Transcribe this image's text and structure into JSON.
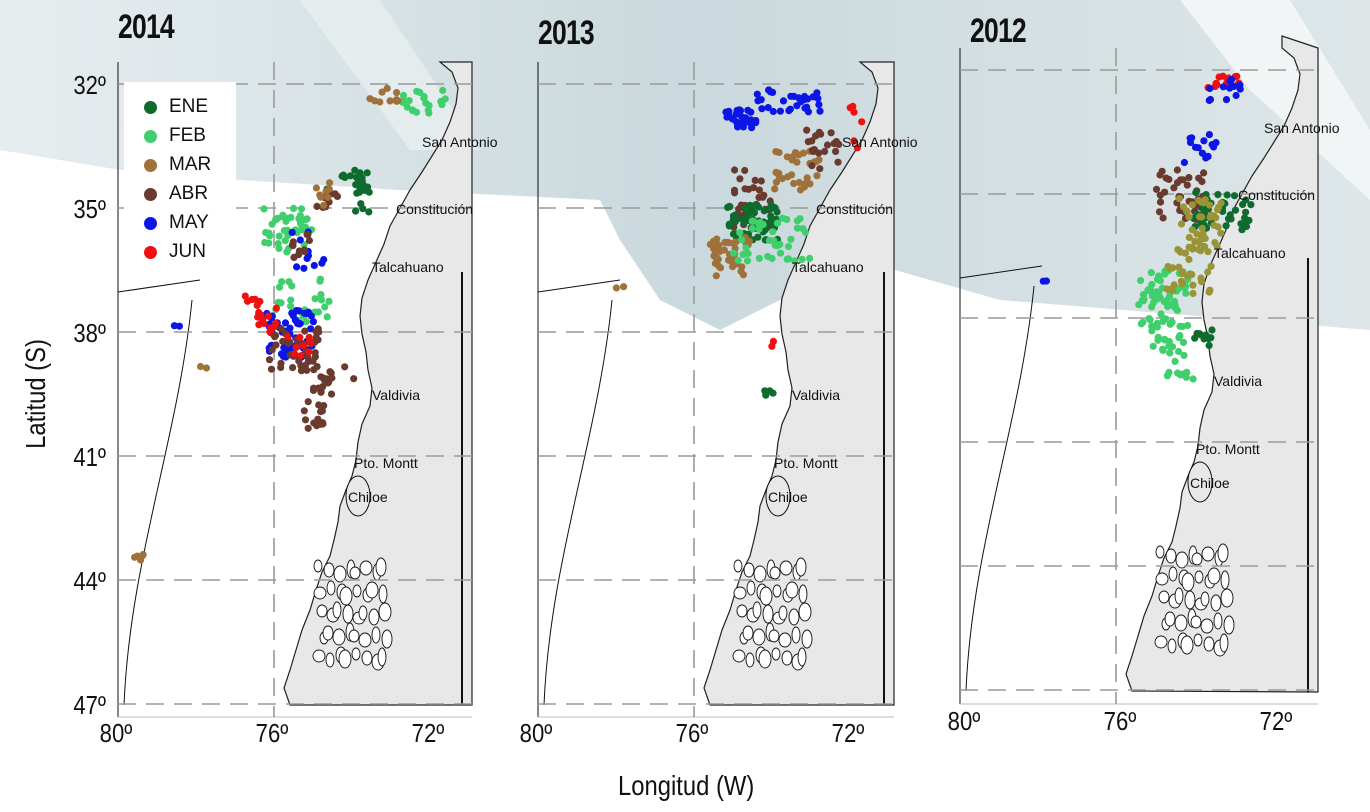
{
  "axis": {
    "ylabel": "Latitud (S)",
    "xlabel": "Longitud (W)",
    "lat_ticks": [
      "32º",
      "35º",
      "38º",
      "41º",
      "44º",
      "47º"
    ],
    "lon_ticks": [
      "80º",
      "76º",
      "72º"
    ]
  },
  "legend": {
    "items": [
      {
        "label": "ENE",
        "color": "#0e6b2e"
      },
      {
        "label": "FEB",
        "color": "#3fcf6c"
      },
      {
        "label": "MAR",
        "color": "#a0713b"
      },
      {
        "label": "ABR",
        "color": "#6b3a2f"
      },
      {
        "label": "MAY",
        "color": "#0b16e6"
      },
      {
        "label": "JUN",
        "color": "#ee1111"
      }
    ]
  },
  "cities": [
    "San Antonio",
    "Constitución",
    "Talcahuano",
    "Valdivia",
    "Pto. Montt",
    "Chiloe"
  ],
  "panels": [
    {
      "year": "2014"
    },
    {
      "year": "2013"
    },
    {
      "year": "2012"
    }
  ],
  "colors": {
    "land": "#e8e8e8",
    "background_water": "#c9d8dc",
    "grid": "#9a9a9a",
    "extra_2012": "#9a9438"
  }
}
